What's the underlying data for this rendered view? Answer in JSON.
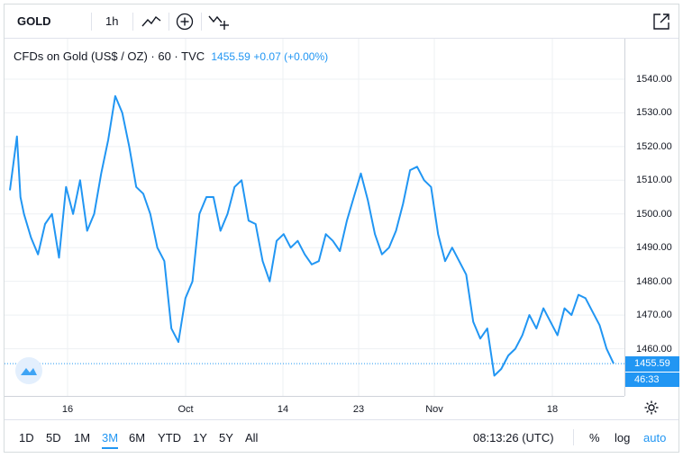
{
  "toolbar": {
    "symbol": "GOLD",
    "interval": "1h",
    "icons": [
      "chart-style-icon",
      "add-compare-icon",
      "indicators-icon",
      "fullscreen-icon"
    ]
  },
  "legend": {
    "name": "CFDs on Gold (US$ / OZ) · 60 · TVC",
    "price": "1455.59",
    "change": "+0.07 (+0.00%)"
  },
  "last_price_label": "1455.59",
  "countdown_label": "46:33",
  "bottom": {
    "ranges": [
      "1D",
      "5D",
      "1M",
      "3M",
      "6M",
      "YTD",
      "1Y",
      "5Y",
      "All"
    ],
    "active_range": "3M",
    "clock": "08:13:26 (UTC)",
    "percent": "%",
    "log": "log",
    "auto": "auto"
  },
  "colors": {
    "line": "#2196f3",
    "grid": "#eef0f3",
    "accent": "#2196f3"
  },
  "chart_data": {
    "type": "line",
    "title": "CFDs on Gold (US$ / OZ)",
    "x_tick_labels": [
      "16",
      "Oct",
      "14",
      "23",
      "Nov",
      "18"
    ],
    "y_ticks": [
      1460,
      1470,
      1480,
      1490,
      1500,
      1510,
      1520,
      1530,
      1540
    ],
    "y_tick_labels": [
      "1460.00",
      "1470.00",
      "1480.00",
      "1490.00",
      "1500.00",
      "1510.00",
      "1520.00",
      "1530.00",
      "1540.00"
    ],
    "ylim": [
      1446,
      1552
    ],
    "grid": true,
    "last_value": 1455.59,
    "series": [
      {
        "x": [
          0,
          1,
          1.5,
          2,
          3,
          4,
          5,
          6,
          7,
          8,
          9,
          10,
          11,
          12,
          13,
          14,
          15,
          16,
          17,
          18,
          19,
          20,
          21,
          22,
          23,
          24,
          25,
          26,
          27,
          28,
          29,
          30,
          31,
          32,
          33,
          34,
          35,
          36,
          37,
          38,
          39,
          40,
          41,
          42,
          43,
          44,
          45,
          46,
          47,
          48,
          49,
          50,
          51,
          52,
          53,
          54,
          55,
          56,
          57,
          58,
          59,
          60,
          61,
          62,
          63,
          64,
          65,
          66,
          67,
          68,
          69,
          70,
          71,
          72,
          73,
          74,
          75,
          76,
          77,
          78,
          79,
          80,
          81,
          82,
          83,
          84,
          85,
          86
        ],
        "values": [
          1507,
          1523,
          1505,
          1500,
          1493,
          1488,
          1497,
          1500,
          1487,
          1508,
          1500,
          1510,
          1495,
          1500,
          1512,
          1522,
          1535,
          1530,
          1520,
          1508,
          1506,
          1500,
          1490,
          1486,
          1466,
          1462,
          1475,
          1480,
          1500,
          1505,
          1505,
          1495,
          1500,
          1508,
          1510,
          1498,
          1497,
          1486,
          1480,
          1492,
          1494,
          1490,
          1492,
          1488,
          1485,
          1486,
          1494,
          1492,
          1489,
          1498,
          1505,
          1512,
          1504,
          1494,
          1488,
          1490,
          1495,
          1503,
          1513,
          1514,
          1510,
          1508,
          1494,
          1486,
          1490,
          1486,
          1482,
          1468,
          1463,
          1466,
          1452,
          1454,
          1458,
          1460,
          1464,
          1470,
          1466,
          1472,
          1468,
          1464,
          1472,
          1470,
          1476,
          1475,
          1471,
          1467,
          1460,
          1455.59
        ]
      }
    ]
  }
}
